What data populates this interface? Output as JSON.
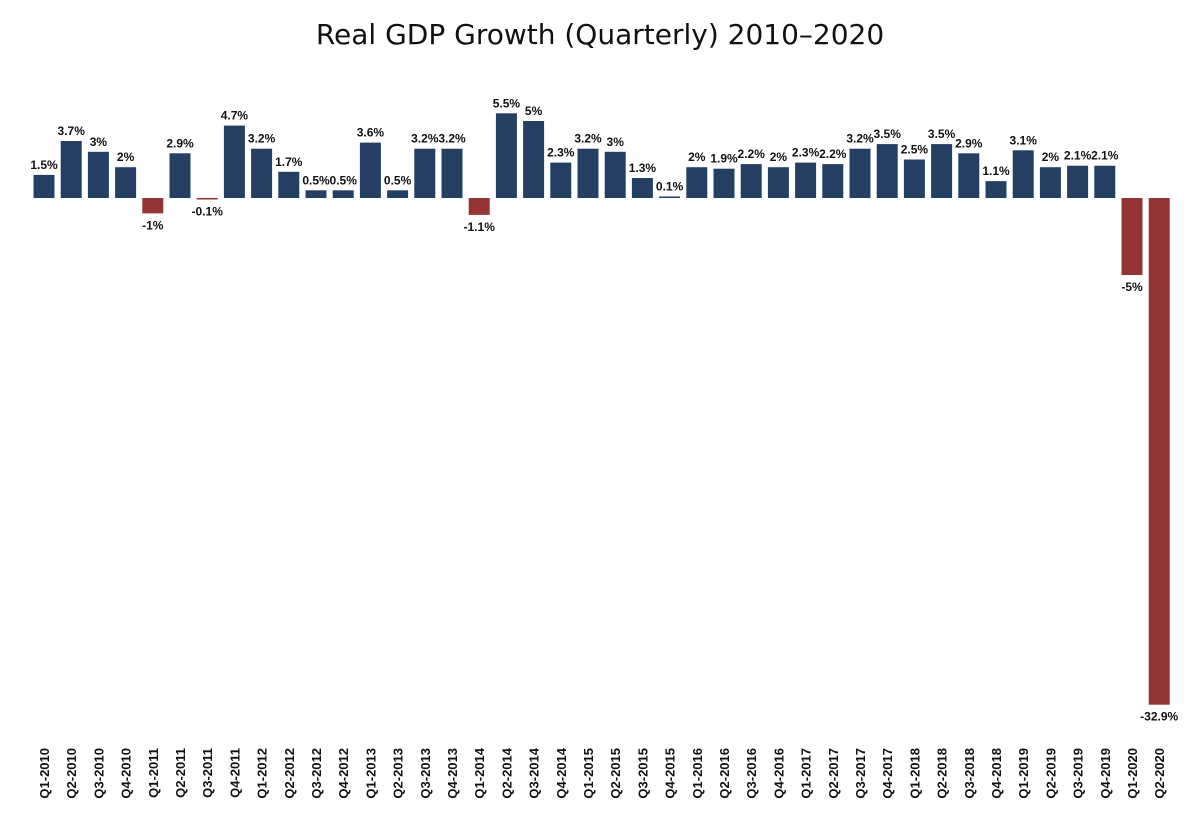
{
  "title": "Real GDP Growth (Quarterly) 2010–2020",
  "colors": {
    "positive": "#253f62",
    "negative": "#943434"
  },
  "chart_data": {
    "type": "bar",
    "title": "Real GDP Growth (Quarterly) 2010–2020",
    "xlabel": "",
    "ylabel": "",
    "grid": false,
    "legend": "none",
    "ylim": [
      -32.9,
      5.5
    ],
    "value_suffix": "%",
    "categories": [
      "Q1-2010",
      "Q2-2010",
      "Q3-2010",
      "Q4-2010",
      "Q1-2011",
      "Q2-2011",
      "Q3-2011",
      "Q4-2011",
      "Q1-2012",
      "Q2-2012",
      "Q3-2012",
      "Q4-2012",
      "Q1-2013",
      "Q2-2013",
      "Q3-2013",
      "Q4-2013",
      "Q1-2014",
      "Q2-2014",
      "Q3-2014",
      "Q4-2014",
      "Q1-2015",
      "Q2-2015",
      "Q3-2015",
      "Q4-2015",
      "Q1-2016",
      "Q2-2016",
      "Q3-2016",
      "Q4-2016",
      "Q1-2017",
      "Q2-2017",
      "Q3-2017",
      "Q4-2017",
      "Q1-2018",
      "Q2-2018",
      "Q3-2018",
      "Q4-2018",
      "Q1-2019",
      "Q2-2019",
      "Q3-2019",
      "Q4-2019",
      "Q1-2020",
      "Q2-2020"
    ],
    "values": [
      1.5,
      3.7,
      3,
      2,
      -1,
      2.9,
      -0.1,
      4.7,
      3.2,
      1.7,
      0.5,
      0.5,
      3.6,
      0.5,
      3.2,
      3.2,
      -1.1,
      5.5,
      5,
      2.3,
      3.2,
      3,
      1.3,
      0.1,
      2,
      1.9,
      2.2,
      2,
      2.3,
      2.2,
      3.2,
      3.5,
      2.5,
      3.5,
      2.9,
      1.1,
      3.1,
      2,
      2.1,
      2.1,
      -5,
      -32.9
    ]
  }
}
